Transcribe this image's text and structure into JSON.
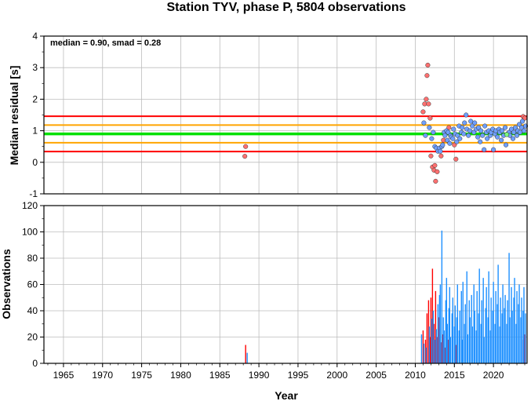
{
  "chart_data": [
    {
      "type": "scatter",
      "title": "Station TYV, phase P, 5804 observations",
      "xlabel": "",
      "ylabel": "Median residual [s]",
      "annotation": "median = 0.90, smad = 0.28",
      "xlim": [
        1962.5,
        2024.3
      ],
      "ylim": [
        -1,
        4
      ],
      "yticks": [
        "-1",
        "0",
        "1",
        "2",
        "3",
        "4"
      ],
      "grid": true,
      "reference_lines": [
        {
          "value": 0.9,
          "color": "#00e000"
        },
        {
          "value": 1.18,
          "color": "#ffa500"
        },
        {
          "value": 0.62,
          "color": "#ffa500"
        },
        {
          "value": 1.46,
          "color": "#ff0000"
        },
        {
          "value": 0.34,
          "color": "#ff0000"
        }
      ],
      "colors": {
        "good": "#6f9fff",
        "outlier": "#ff7070",
        "green_point": "#7dff7d"
      },
      "series": [
        {
          "values": [
            [
              1988.3,
              0.5
            ],
            [
              1988.2,
              0.19
            ],
            [
              2011.0,
              1.6
            ],
            [
              2011.2,
              1.85
            ],
            [
              2011.4,
              2.0
            ],
            [
              2011.5,
              2.75
            ],
            [
              2011.6,
              3.08
            ],
            [
              2011.7,
              1.85
            ],
            [
              2011.9,
              1.4
            ],
            [
              2012.0,
              0.2
            ],
            [
              2012.2,
              -0.15
            ],
            [
              2012.4,
              -0.25
            ],
            [
              2012.5,
              -0.1
            ],
            [
              2012.6,
              -0.6
            ],
            [
              2012.8,
              -0.3
            ],
            [
              2013.0,
              0.4
            ],
            [
              2013.3,
              0.2
            ],
            [
              2013.6,
              0.7
            ],
            [
              2014.3,
              1.1
            ],
            [
              2015.0,
              0.55
            ],
            [
              2015.2,
              0.1
            ],
            [
              2021.8,
              0.9
            ],
            [
              2023.8,
              1.45
            ],
            [
              2024.0,
              1.4
            ]
          ]
        },
        {
          "values": [
            [
              2011.1,
              1.25
            ],
            [
              2011.3,
              0.85
            ],
            [
              2011.8,
              1.1
            ],
            [
              2012.1,
              0.75
            ],
            [
              2012.3,
              0.95
            ],
            [
              2012.5,
              0.5
            ],
            [
              2012.7,
              0.45
            ],
            [
              2012.9,
              0.35
            ],
            [
              2013.1,
              0.45
            ],
            [
              2013.2,
              0.35
            ],
            [
              2013.4,
              0.5
            ],
            [
              2013.5,
              0.55
            ],
            [
              2013.7,
              0.95
            ],
            [
              2013.8,
              0.85
            ],
            [
              2014.0,
              1.0
            ],
            [
              2014.1,
              0.7
            ],
            [
              2014.2,
              0.95
            ],
            [
              2014.4,
              0.6
            ],
            [
              2014.5,
              0.85
            ],
            [
              2014.6,
              0.8
            ],
            [
              2014.8,
              0.75
            ],
            [
              2014.9,
              1.05
            ],
            [
              2015.1,
              0.9
            ],
            [
              2015.3,
              0.65
            ],
            [
              2015.4,
              0.85
            ],
            [
              2015.6,
              1.15
            ],
            [
              2015.7,
              0.75
            ],
            [
              2015.9,
              0.95
            ],
            [
              2016.0,
              1.1
            ],
            [
              2016.2,
              0.9
            ],
            [
              2016.3,
              1.25
            ],
            [
              2016.5,
              1.5
            ],
            [
              2016.6,
              1.05
            ],
            [
              2016.8,
              0.85
            ],
            [
              2017.0,
              1.0
            ],
            [
              2017.1,
              1.3
            ],
            [
              2017.3,
              1.15
            ],
            [
              2017.5,
              0.95
            ],
            [
              2017.6,
              1.25
            ],
            [
              2017.8,
              1.05
            ],
            [
              2018.0,
              0.8
            ],
            [
              2018.1,
              1.1
            ],
            [
              2018.3,
              0.65
            ],
            [
              2018.4,
              1.0
            ],
            [
              2018.6,
              0.85
            ],
            [
              2018.8,
              0.4
            ],
            [
              2018.9,
              1.15
            ],
            [
              2019.1,
              0.95
            ],
            [
              2019.2,
              0.75
            ],
            [
              2019.4,
              1.0
            ],
            [
              2019.6,
              0.85
            ],
            [
              2019.7,
              0.95
            ],
            [
              2019.9,
              1.05
            ],
            [
              2020.0,
              0.4
            ],
            [
              2020.2,
              0.9
            ],
            [
              2020.3,
              1.0
            ],
            [
              2020.5,
              0.8
            ],
            [
              2020.7,
              1.05
            ],
            [
              2020.8,
              0.95
            ],
            [
              2021.0,
              0.7
            ],
            [
              2021.1,
              1.0
            ],
            [
              2021.3,
              0.85
            ],
            [
              2021.5,
              1.1
            ],
            [
              2021.6,
              0.55
            ],
            [
              2022.0,
              0.95
            ],
            [
              2022.1,
              0.85
            ],
            [
              2022.3,
              1.05
            ],
            [
              2022.5,
              0.75
            ],
            [
              2022.6,
              0.95
            ],
            [
              2022.8,
              1.1
            ],
            [
              2023.0,
              0.85
            ],
            [
              2023.1,
              1.0
            ],
            [
              2023.3,
              1.2
            ],
            [
              2023.4,
              0.95
            ],
            [
              2023.6,
              1.1
            ],
            [
              2023.7,
              1.3
            ],
            [
              2023.9,
              1.0
            ],
            [
              2024.1,
              1.15
            ]
          ]
        },
        {
          "values": [
            [
              2021.7,
              0.88
            ]
          ]
        }
      ]
    },
    {
      "type": "bar",
      "xlabel": "Year",
      "ylabel": "Observations",
      "xlim": [
        1962.5,
        2024.3
      ],
      "ylim": [
        0,
        120
      ],
      "xticks": [
        "1965",
        "1970",
        "1975",
        "1980",
        "1985",
        "1990",
        "1995",
        "2000",
        "2005",
        "2010",
        "2015",
        "2020"
      ],
      "yticks": [
        "0",
        "20",
        "40",
        "60",
        "80",
        "100",
        "120"
      ],
      "grid": true,
      "series": [
        {
          "color": "#ff0000",
          "values": [
            [
              1988.3,
              14
            ],
            [
              2011.0,
              25
            ],
            [
              2011.3,
              18
            ],
            [
              2011.5,
              38
            ],
            [
              2011.7,
              48
            ],
            [
              2011.9,
              20
            ],
            [
              2012.0,
              50
            ],
            [
              2012.2,
              72
            ],
            [
              2012.4,
              30
            ],
            [
              2012.6,
              55
            ],
            [
              2012.8,
              20
            ],
            [
              2013.0,
              35
            ],
            [
              2013.3,
              16
            ],
            [
              2013.5,
              22
            ],
            [
              2013.8,
              12
            ],
            [
              2014.2,
              18
            ],
            [
              2015.2,
              14
            ],
            [
              2023.8,
              18
            ],
            [
              2024.0,
              22
            ]
          ]
        },
        {
          "color": "#1e90ff",
          "values": [
            [
              1988.5,
              8
            ],
            [
              2010.8,
              22
            ],
            [
              2011.1,
              15
            ],
            [
              2011.4,
              12
            ],
            [
              2011.8,
              28
            ],
            [
              2012.1,
              34
            ],
            [
              2012.3,
              40
            ],
            [
              2012.5,
              18
            ],
            [
              2012.7,
              26
            ],
            [
              2012.9,
              45
            ],
            [
              2013.1,
              52
            ],
            [
              2013.2,
              60
            ],
            [
              2013.4,
              101
            ],
            [
              2013.6,
              35
            ],
            [
              2013.7,
              25
            ],
            [
              2013.9,
              48
            ],
            [
              2014.0,
              65
            ],
            [
              2014.1,
              30
            ],
            [
              2014.3,
              42
            ],
            [
              2014.4,
              58
            ],
            [
              2014.5,
              20
            ],
            [
              2014.7,
              38
            ],
            [
              2014.8,
              50
            ],
            [
              2015.0,
              28
            ],
            [
              2015.1,
              44
            ],
            [
              2015.3,
              35
            ],
            [
              2015.4,
              60
            ],
            [
              2015.6,
              25
            ],
            [
              2015.7,
              40
            ],
            [
              2015.9,
              55
            ],
            [
              2016.0,
              18
            ],
            [
              2016.1,
              62
            ],
            [
              2016.3,
              30
            ],
            [
              2016.4,
              45
            ],
            [
              2016.6,
              70
            ],
            [
              2016.7,
              22
            ],
            [
              2016.9,
              48
            ],
            [
              2017.0,
              35
            ],
            [
              2017.2,
              52
            ],
            [
              2017.3,
              28
            ],
            [
              2017.5,
              60
            ],
            [
              2017.6,
              40
            ],
            [
              2017.8,
              25
            ],
            [
              2017.9,
              55
            ],
            [
              2018.1,
              38
            ],
            [
              2018.2,
              72
            ],
            [
              2018.4,
              30
            ],
            [
              2018.5,
              48
            ],
            [
              2018.7,
              65
            ],
            [
              2018.8,
              20
            ],
            [
              2019.0,
              42
            ],
            [
              2019.1,
              58
            ],
            [
              2019.3,
              35
            ],
            [
              2019.4,
              70
            ],
            [
              2019.6,
              25
            ],
            [
              2019.7,
              50
            ],
            [
              2019.9,
              40
            ],
            [
              2020.0,
              62
            ],
            [
              2020.2,
              30
            ],
            [
              2020.3,
              55
            ],
            [
              2020.5,
              45
            ],
            [
              2020.6,
              75
            ],
            [
              2020.8,
              28
            ],
            [
              2020.9,
              50
            ],
            [
              2021.1,
              38
            ],
            [
              2021.2,
              60
            ],
            [
              2021.4,
              42
            ],
            [
              2021.5,
              52
            ],
            [
              2021.7,
              30
            ],
            [
              2021.8,
              48
            ],
            [
              2022.0,
              84
            ],
            [
              2022.1,
              35
            ],
            [
              2022.3,
              58
            ],
            [
              2022.4,
              40
            ],
            [
              2022.6,
              50
            ],
            [
              2022.7,
              65
            ],
            [
              2022.9,
              30
            ],
            [
              2023.0,
              55
            ],
            [
              2023.2,
              45
            ],
            [
              2023.3,
              60
            ],
            [
              2023.5,
              35
            ],
            [
              2023.6,
              50
            ],
            [
              2023.8,
              40
            ],
            [
              2023.9,
              58
            ],
            [
              2024.1,
              38
            ]
          ]
        }
      ]
    }
  ]
}
